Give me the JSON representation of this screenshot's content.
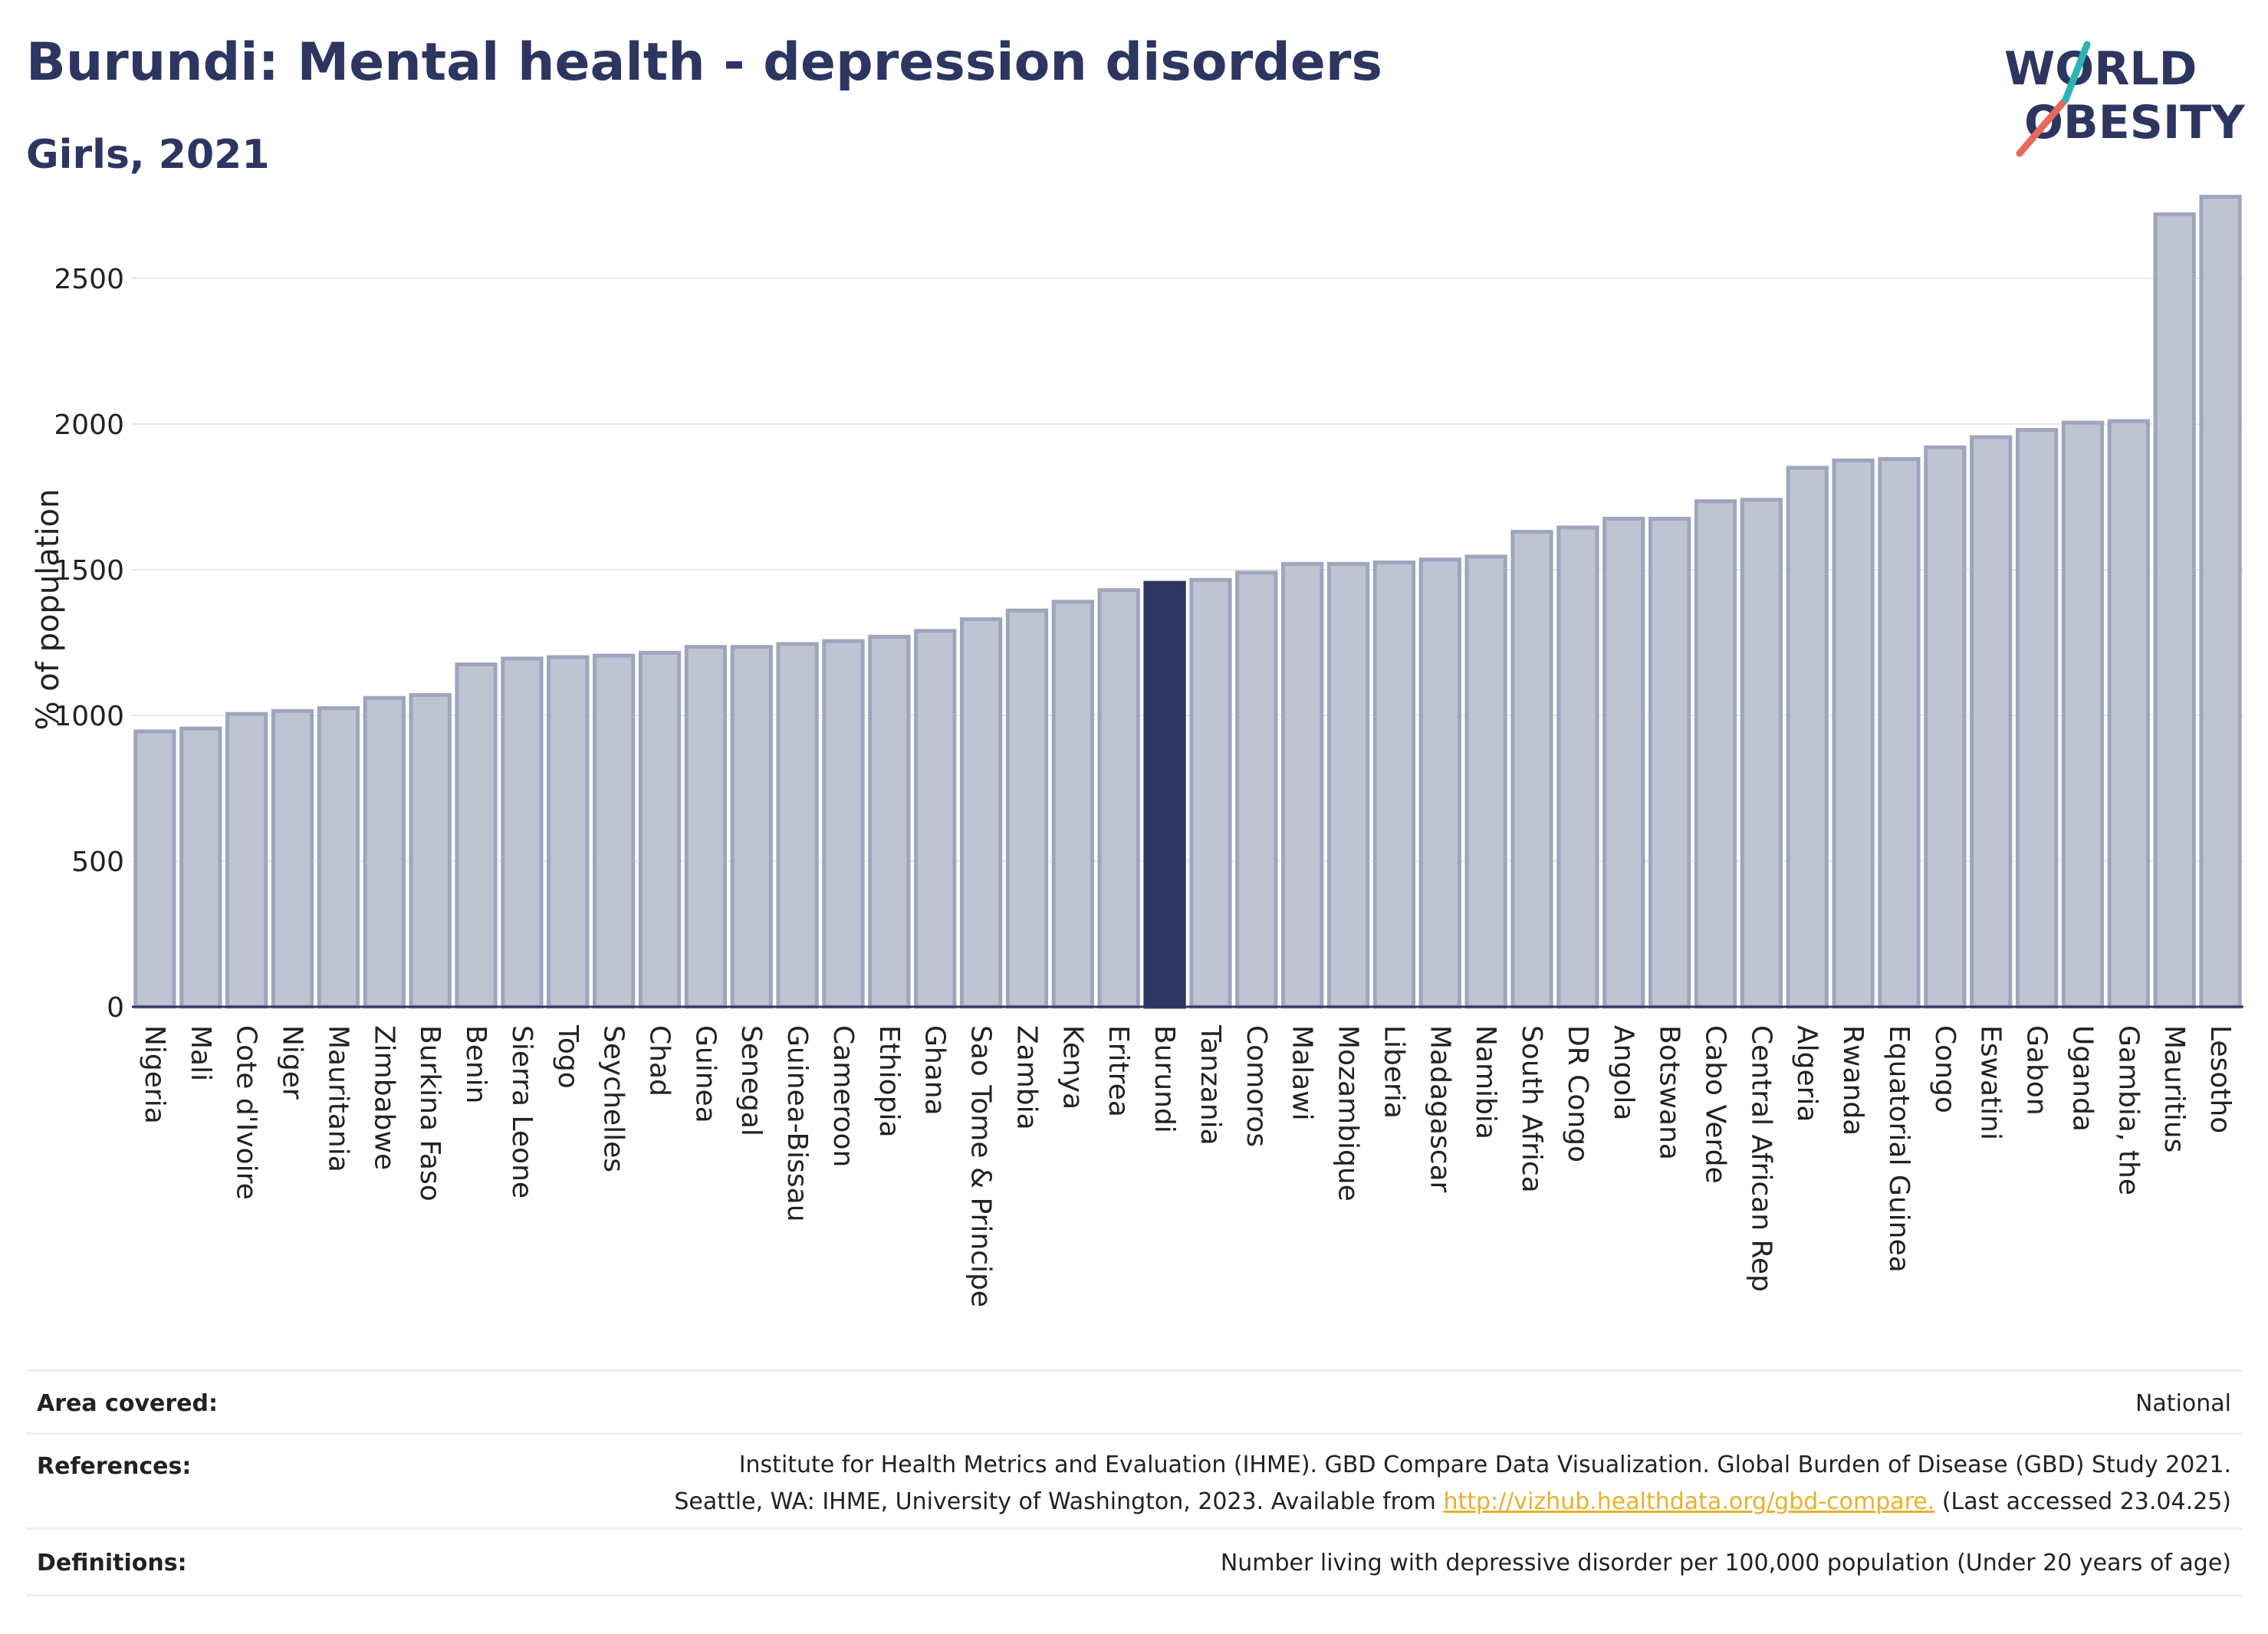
{
  "header": {
    "title": "Burundi: Mental health - depression disorders",
    "subtitle": "Girls, 2021",
    "logo_line1": "WORLD",
    "logo_line2": "OBESITY"
  },
  "colors": {
    "highlight": "#2d3561",
    "bar": "#bfc3d2",
    "bar_border": "#9fa5bd",
    "title": "#2d3561",
    "link": "#e8b12a"
  },
  "chart_data": {
    "type": "bar",
    "ylabel": "% of population",
    "xlabel": "",
    "ylim": [
      0,
      2850
    ],
    "yticks": [
      0,
      500,
      1000,
      1500,
      2000,
      2500
    ],
    "grid": true,
    "highlight": "Burundi",
    "categories": [
      "Nigeria",
      "Mali",
      "Cote d'Ivoire",
      "Niger",
      "Mauritania",
      "Zimbabwe",
      "Burkina Faso",
      "Benin",
      "Sierra Leone",
      "Togo",
      "Seychelles",
      "Chad",
      "Guinea",
      "Senegal",
      "Guinea-Bissau",
      "Cameroon",
      "Ethiopia",
      "Ghana",
      "Sao Tome & Principe",
      "Zambia",
      "Kenya",
      "Eritrea",
      "Burundi",
      "Tanzania",
      "Comoros",
      "Malawi",
      "Mozambique",
      "Liberia",
      "Madagascar",
      "Namibia",
      "South Africa",
      "DR Congo",
      "Angola",
      "Botswana",
      "Cabo Verde",
      "Central African Rep",
      "Algeria",
      "Rwanda",
      "Equatorial Guinea",
      "Congo",
      "Eswatini",
      "Gabon",
      "Uganda",
      "Gambia, the",
      "Mauritius",
      "Lesotho"
    ],
    "values": [
      945,
      955,
      1005,
      1015,
      1025,
      1060,
      1070,
      1175,
      1195,
      1200,
      1205,
      1215,
      1235,
      1235,
      1245,
      1255,
      1270,
      1290,
      1330,
      1360,
      1390,
      1430,
      1455,
      1465,
      1490,
      1520,
      1520,
      1525,
      1535,
      1545,
      1630,
      1645,
      1675,
      1675,
      1735,
      1740,
      1850,
      1875,
      1880,
      1920,
      1955,
      1980,
      2005,
      2010,
      2720,
      2780
    ]
  },
  "info": {
    "area_label": "Area covered:",
    "area_value": "National",
    "refs_label": "References:",
    "refs_line1": "Institute for Health Metrics and Evaluation (IHME). GBD Compare Data Visualization. Global Burden of Disease (GBD) Study 2021.",
    "refs_line2_pre": "Seattle, WA: IHME, University of Washington, 2023. Available from ",
    "refs_link": "http://vizhub.healthdata.org/gbd-compare.",
    "refs_line2_post": " (Last accessed 23.04.25)",
    "defs_label": "Definitions:",
    "defs_value": "Number living with depressive disorder per 100,000 population (Under 20 years of age)"
  }
}
